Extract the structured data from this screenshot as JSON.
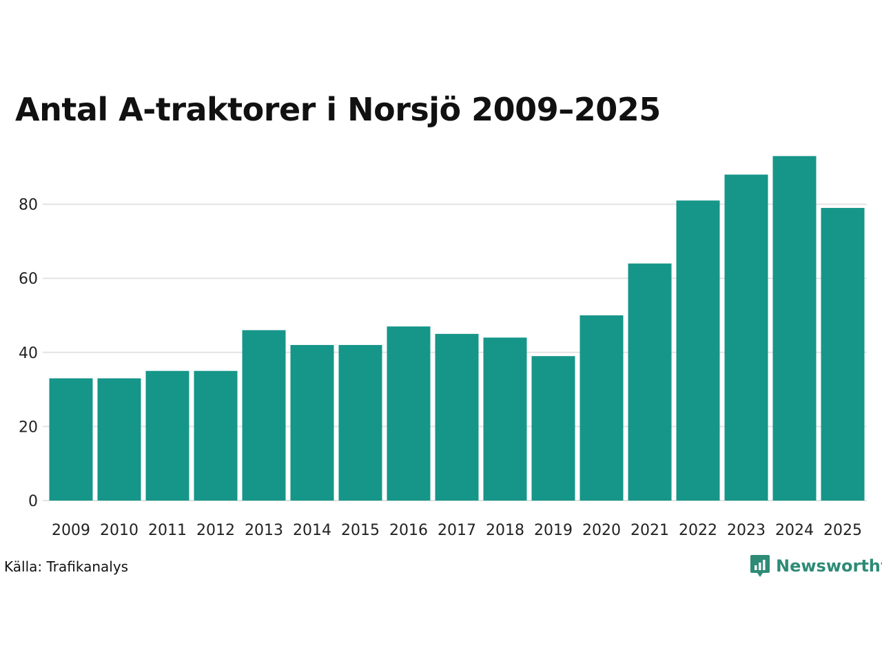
{
  "chart_data": {
    "type": "bar",
    "title": "Antal A-traktorer i Norsjö 2009–2025",
    "categories": [
      "2009",
      "2010",
      "2011",
      "2012",
      "2013",
      "2014",
      "2015",
      "2016",
      "2017",
      "2018",
      "2019",
      "2020",
      "2021",
      "2022",
      "2023",
      "2024",
      "2025"
    ],
    "values": [
      33,
      33,
      35,
      35,
      46,
      42,
      42,
      47,
      45,
      44,
      39,
      50,
      64,
      81,
      88,
      93,
      79
    ],
    "ylim": [
      0,
      100
    ],
    "yticks": [
      0,
      20,
      40,
      60,
      80
    ],
    "xlabel": "",
    "ylabel": "",
    "grid": true,
    "bar_color": "#169689",
    "grid_color": "#e3e3e3"
  },
  "footer": {
    "source": "Källa: Trafikanalys",
    "brand": "Newsworthy",
    "brand_icon": "bar-chart-speech-bubble-icon",
    "brand_color": "#2e8b76"
  }
}
